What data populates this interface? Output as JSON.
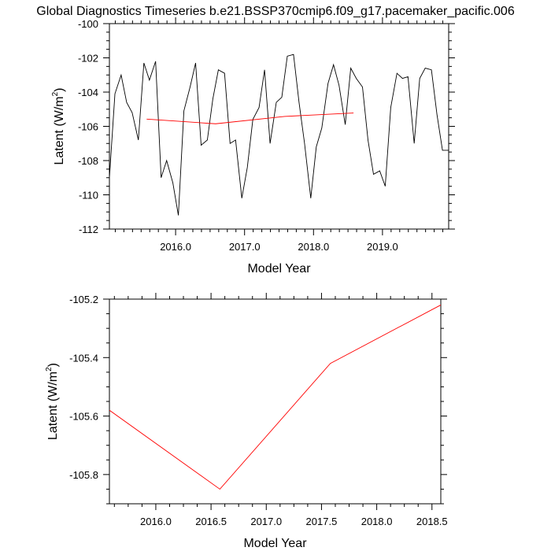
{
  "title": "Global Diagnostics Timeseries b.e21.BSSP370cmip6.f09_g17.pacemaker_pacific.006",
  "colors": {
    "monthly": "#000000",
    "annual": "#ff0000"
  },
  "chart_data": [
    {
      "type": "line",
      "xlabel": "Model Year",
      "ylabel": {
        "main": "Latent (W/m",
        "sup": "2",
        "close": ")"
      },
      "xlim": [
        2015.04,
        2019.96
      ],
      "ylim": [
        -112,
        -100
      ],
      "xticks": [
        2016.0,
        2017.0,
        2018.0,
        2019.0
      ],
      "xtick_labels": [
        "2016.0",
        "2017.0",
        "2018.0",
        "2019.0"
      ],
      "yticks": [
        -112,
        -110,
        -108,
        -106,
        -104,
        -102,
        -100
      ],
      "ytick_labels": [
        "-112",
        "-110",
        "-108",
        "-106",
        "-104",
        "-102",
        "-100"
      ],
      "series": [
        {
          "style": "monthly",
          "x": [
            2015.04,
            2015.12,
            2015.21,
            2015.29,
            2015.37,
            2015.46,
            2015.54,
            2015.62,
            2015.71,
            2015.79,
            2015.87,
            2015.96,
            2016.04,
            2016.12,
            2016.21,
            2016.29,
            2016.37,
            2016.46,
            2016.54,
            2016.62,
            2016.71,
            2016.79,
            2016.87,
            2016.96,
            2017.04,
            2017.12,
            2017.21,
            2017.29,
            2017.37,
            2017.46,
            2017.54,
            2017.62,
            2017.71,
            2017.79,
            2017.87,
            2017.96,
            2018.04,
            2018.12,
            2018.21,
            2018.29,
            2018.37,
            2018.46,
            2018.54,
            2018.62,
            2018.71,
            2018.79,
            2018.87,
            2018.96,
            2019.04,
            2019.12,
            2019.21,
            2019.29,
            2019.37,
            2019.46,
            2019.54,
            2019.62,
            2019.71,
            2019.79,
            2019.87,
            2019.96
          ],
          "y": [
            -109.0,
            -104.1,
            -103.0,
            -104.6,
            -105.2,
            -106.8,
            -102.3,
            -103.3,
            -102.2,
            -109.0,
            -108.0,
            -109.3,
            -111.2,
            -105.1,
            -103.7,
            -102.3,
            -107.1,
            -106.8,
            -104.4,
            -102.7,
            -102.9,
            -107.0,
            -106.8,
            -110.2,
            -108.4,
            -105.6,
            -104.9,
            -102.7,
            -107.0,
            -104.6,
            -104.3,
            -101.9,
            -101.8,
            -104.6,
            -107.0,
            -110.2,
            -107.2,
            -106.1,
            -103.5,
            -102.4,
            -103.6,
            -105.9,
            -102.6,
            -103.2,
            -103.7,
            -106.8,
            -108.8,
            -108.6,
            -109.5,
            -104.9,
            -102.9,
            -103.2,
            -103.1,
            -107.0,
            -103.2,
            -102.6,
            -102.7,
            -105.3,
            -107.4,
            -107.4
          ]
        },
        {
          "style": "annual",
          "x": [
            2015.58,
            2016.58,
            2017.58,
            2018.58
          ],
          "y": [
            -105.58,
            -105.85,
            -105.42,
            -105.22
          ]
        }
      ]
    },
    {
      "type": "line",
      "xlabel": "Model Year",
      "ylabel": {
        "main": "Latent (W/m",
        "sup": "2",
        "close": ")"
      },
      "xlim": [
        2015.58,
        2018.58
      ],
      "ylim": [
        -105.9,
        -105.2
      ],
      "xticks": [
        2016.0,
        2016.5,
        2017.0,
        2017.5,
        2018.0,
        2018.5
      ],
      "xtick_labels": [
        "2016.0",
        "2016.5",
        "2017.0",
        "2017.5",
        "2018.0",
        "2018.5"
      ],
      "yticks": [
        -105.8,
        -105.6,
        -105.4,
        -105.2
      ],
      "ytick_labels": [
        "-105.8",
        "-105.6",
        "-105.4",
        "-105.2"
      ],
      "series": [
        {
          "style": "annual",
          "x": [
            2015.58,
            2016.58,
            2017.58,
            2018.58
          ],
          "y": [
            -105.58,
            -105.85,
            -105.42,
            -105.22
          ]
        }
      ]
    }
  ]
}
